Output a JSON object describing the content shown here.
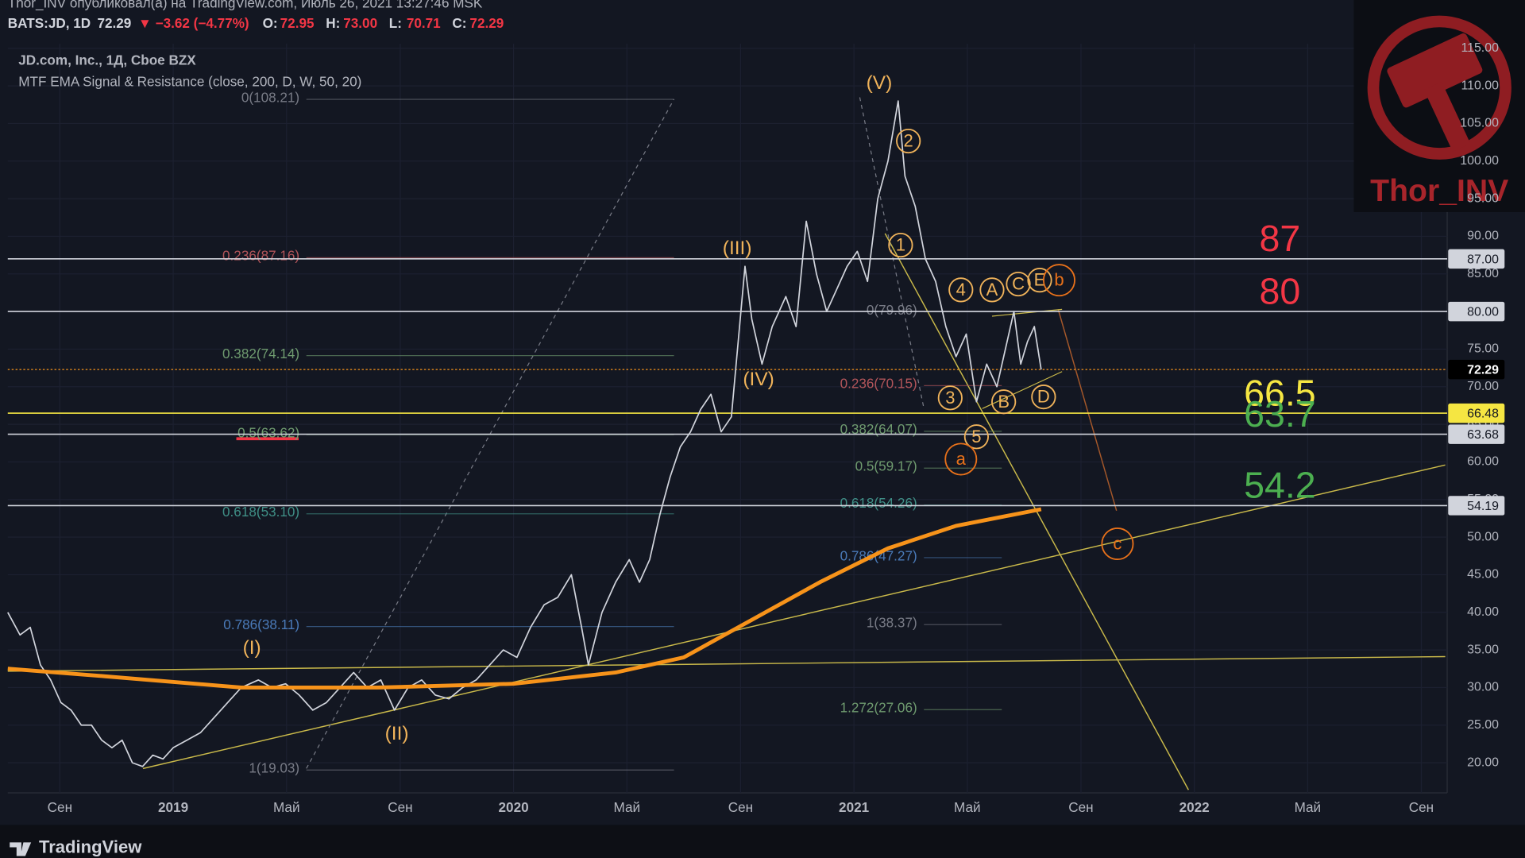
{
  "header": {
    "published": "Thor_INV опубликовал(а) на TradingView.com, Июль 26, 2021 13:27:46 MSK",
    "symbol": "BATS:JD, 1D",
    "last": "72.29",
    "change": "▼ −3.62 (−4.77%)",
    "ohlc": [
      [
        "O:",
        "72.95"
      ],
      [
        "H:",
        "73.00"
      ],
      [
        "L:",
        "70.71"
      ],
      [
        "C:",
        "72.29"
      ]
    ]
  },
  "brand": {
    "watermark": "Thor_INV",
    "footer": "TradingView"
  },
  "chart_data": {
    "type": "line",
    "title": "JD.com, Inc., 1Д, Cboe BZX",
    "subtitle": "MTF EMA Signal & Resistance (close, 200, D, W, 50, 20)",
    "xlim": [
      2018.514,
      2022.743
    ],
    "ylim": [
      16,
      115.6
    ],
    "grid": true,
    "xticks": [
      {
        "value": 2018.667,
        "label": "Сен"
      },
      2019,
      {
        "value": 2019.333,
        "label": "Май"
      },
      {
        "value": 2019.667,
        "label": "Сен"
      },
      2020,
      {
        "value": 2020.333,
        "label": "Май"
      },
      {
        "value": 2020.667,
        "label": "Сен"
      },
      2021,
      {
        "value": 2021.333,
        "label": "Май"
      },
      {
        "value": 2021.667,
        "label": "Сен"
      },
      2022,
      {
        "value": 2022.333,
        "label": "Май"
      },
      {
        "value": 2022.667,
        "label": "Сен"
      }
    ],
    "yticks": [
      {
        "value": 20,
        "label": "20.00"
      },
      {
        "value": 25,
        "label": "25.00"
      },
      {
        "value": 30,
        "label": "30.00"
      },
      {
        "value": 35,
        "label": "35.00"
      },
      {
        "value": 40,
        "label": "40.00"
      },
      {
        "value": 45,
        "label": "45.00"
      },
      {
        "value": 50,
        "label": "50.00"
      },
      {
        "value": 55,
        "label": "55.00"
      },
      {
        "value": 60,
        "label": "60.00"
      },
      {
        "value": 65,
        "label": "65.00"
      },
      {
        "value": 70,
        "label": "70.00"
      },
      {
        "value": 75,
        "label": "75.00"
      },
      {
        "value": 80,
        "label": "80.00"
      },
      {
        "value": 85,
        "label": "85.00"
      },
      {
        "value": 90,
        "label": "90.00"
      },
      {
        "value": 95,
        "label": "95.00"
      },
      {
        "value": 100,
        "label": "100.00"
      },
      {
        "value": 105,
        "label": "105.00"
      },
      {
        "value": 110,
        "label": "110.00"
      },
      {
        "value": 115,
        "label": "115.00"
      }
    ],
    "series": [
      {
        "color": "#d1d4dc",
        "x": [
          2018.514,
          2018.55,
          2018.58,
          2018.61,
          2018.64,
          2018.67,
          2018.7,
          2018.73,
          2018.76,
          2018.79,
          2018.82,
          2018.85,
          2018.88,
          2018.91,
          2018.94,
          2018.97,
          2019.0,
          2019.04,
          2019.08,
          2019.12,
          2019.16,
          2019.2,
          2019.25,
          2019.29,
          2019.33,
          2019.37,
          2019.41,
          2019.45,
          2019.49,
          2019.53,
          2019.57,
          2019.61,
          2019.65,
          2019.69,
          2019.73,
          2019.77,
          2019.81,
          2019.85,
          2019.89,
          2019.93,
          2019.97,
          2020.01,
          2020.05,
          2020.09,
          2020.13,
          2020.17,
          2020.2,
          2020.22,
          2020.26,
          2020.3,
          2020.34,
          2020.37,
          2020.4,
          2020.43,
          2020.46,
          2020.49,
          2020.52,
          2020.55,
          2020.58,
          2020.61,
          2020.64,
          2020.66,
          2020.68,
          2020.7,
          2020.73,
          2020.76,
          2020.8,
          2020.83,
          2020.86,
          2020.89,
          2020.92,
          2020.95,
          2020.98,
          2021.01,
          2021.04,
          2021.07,
          2021.1,
          2021.13,
          2021.15,
          2021.18,
          2021.21,
          2021.24,
          2021.27,
          2021.3,
          2021.33,
          2021.36,
          2021.39,
          2021.42,
          2021.45,
          2021.47,
          2021.49,
          2021.51,
          2021.53,
          2021.55
        ],
        "values": [
          40,
          37,
          38,
          33,
          31,
          28,
          27,
          25,
          25,
          23,
          22,
          23,
          20,
          19.5,
          21,
          20.5,
          22,
          23,
          24,
          26,
          28,
          30,
          31,
          30,
          30.5,
          29,
          27,
          28,
          30,
          32,
          30,
          31,
          27,
          30,
          31,
          29,
          28.5,
          30,
          31,
          33,
          35,
          34,
          38,
          41,
          42,
          45,
          38,
          33,
          40,
          44,
          47,
          44,
          47,
          53,
          58,
          62,
          64,
          67,
          69,
          64,
          66,
          76,
          86,
          79,
          73,
          78,
          82,
          78,
          92,
          85,
          80,
          83,
          86,
          88,
          84,
          95,
          100,
          108,
          98,
          94,
          87,
          84,
          78,
          74,
          77,
          68,
          73,
          70,
          76,
          80,
          73,
          76,
          78,
          72.29
        ]
      },
      {
        "color": "#f7931a",
        "x": [
          2018.514,
          2018.8,
          2019.2,
          2019.6,
          2020.0,
          2020.3,
          2020.5,
          2020.7,
          2020.9,
          2021.1,
          2021.3,
          2021.55
        ],
        "values": [
          32.5,
          31.5,
          30,
          30,
          30.5,
          32,
          34,
          39,
          44,
          48.5,
          51.5,
          53.7
        ]
      }
    ],
    "levels": [
      {
        "value": 87,
        "label": "87.00",
        "color": "#d1d4dc",
        "callout": "87",
        "callout_color": "#f23645"
      },
      {
        "value": 80,
        "label": "80.00",
        "color": "#d1d4dc",
        "callout": "80",
        "callout_color": "#f23645"
      },
      {
        "value": 72.29,
        "label": "72.29",
        "color": "#f7931a"
      },
      {
        "value": 66.48,
        "label": "66.48",
        "color": "#f5e642",
        "callout": "66.5",
        "callout_color": "#f5e642"
      },
      {
        "value": 63.68,
        "label": "63.68",
        "color": "#d1d4dc",
        "callout": "63.7",
        "callout_color": "#4caf50"
      },
      {
        "value": 54.19,
        "label": "54.19",
        "color": "#d1d4dc",
        "callout": "54.2",
        "callout_color": "#4caf50"
      }
    ],
    "fibs": [
      [
        {
          "value": 108.21,
          "label": "0(108.21)",
          "color": "#787b86"
        },
        {
          "value": 87.16,
          "label": "0.236(87.16)",
          "color": "#b2555a"
        },
        {
          "value": 74.14,
          "label": "0.382(74.14)",
          "color": "#6f9b6f"
        },
        {
          "value": 63.62,
          "label": "0.5(63.62)",
          "color": "#6f9b6f"
        },
        {
          "value": 53.1,
          "label": "0.618(53.10)",
          "color": "#3f8f86"
        },
        {
          "value": 38.11,
          "label": "0.786(38.11)",
          "color": "#4a7ab8"
        },
        {
          "value": 19.03,
          "label": "1(19.03)",
          "color": "#787b86"
        }
      ],
      [
        {
          "value": 79.96,
          "label": "0(79.96)",
          "color": "#787b86"
        },
        {
          "value": 70.15,
          "label": "0.236(70.15)",
          "color": "#b2555a"
        },
        {
          "value": 64.07,
          "label": "0.382(64.07)",
          "color": "#6f9b6f"
        },
        {
          "value": 59.17,
          "label": "0.5(59.17)",
          "color": "#6f9b6f"
        },
        {
          "value": 54.26,
          "label": "0.618(54.26)",
          "color": "#3f8f86"
        },
        {
          "value": 47.27,
          "label": "0.786(47.27)",
          "color": "#4a7ab8"
        },
        {
          "value": 38.37,
          "label": "1(38.37)",
          "color": "#787b86"
        },
        {
          "value": 27.06,
          "label": "1.272(27.06)",
          "color": "#6f9b6f"
        }
      ]
    ],
    "waves": [
      "(V)",
      "(III)",
      "(IV)",
      "(I)",
      "(II)",
      "2",
      "1",
      "4",
      "A",
      "C",
      "E",
      "b",
      "3",
      "B",
      "D",
      "5",
      "a",
      "c"
    ]
  }
}
